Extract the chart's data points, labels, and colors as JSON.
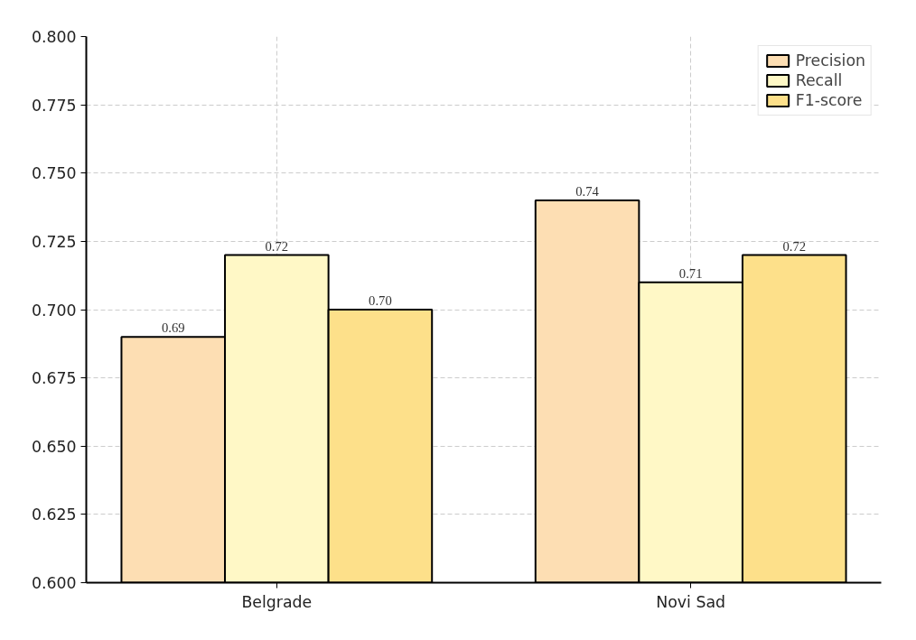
{
  "chart_data": {
    "type": "bar",
    "categories": [
      "Belgrade",
      "Novi Sad"
    ],
    "series": [
      {
        "name": "Precision",
        "color": "#fddeb3",
        "values": [
          0.69,
          0.74
        ],
        "value_labels": [
          "0.69",
          "0.74"
        ]
      },
      {
        "name": "Recall",
        "color": "#fff8c6",
        "values": [
          0.72,
          0.71
        ],
        "value_labels": [
          "0.72",
          "0.71"
        ]
      },
      {
        "name": "F1-score",
        "color": "#fde08a",
        "values": [
          0.7,
          0.72
        ],
        "value_labels": [
          "0.70",
          "0.72"
        ]
      }
    ],
    "ylim": [
      0.6,
      0.8
    ],
    "yticks": [
      "0.600",
      "0.625",
      "0.650",
      "0.675",
      "0.700",
      "0.725",
      "0.750",
      "0.775",
      "0.800"
    ],
    "grid": true,
    "legend": "top right"
  }
}
